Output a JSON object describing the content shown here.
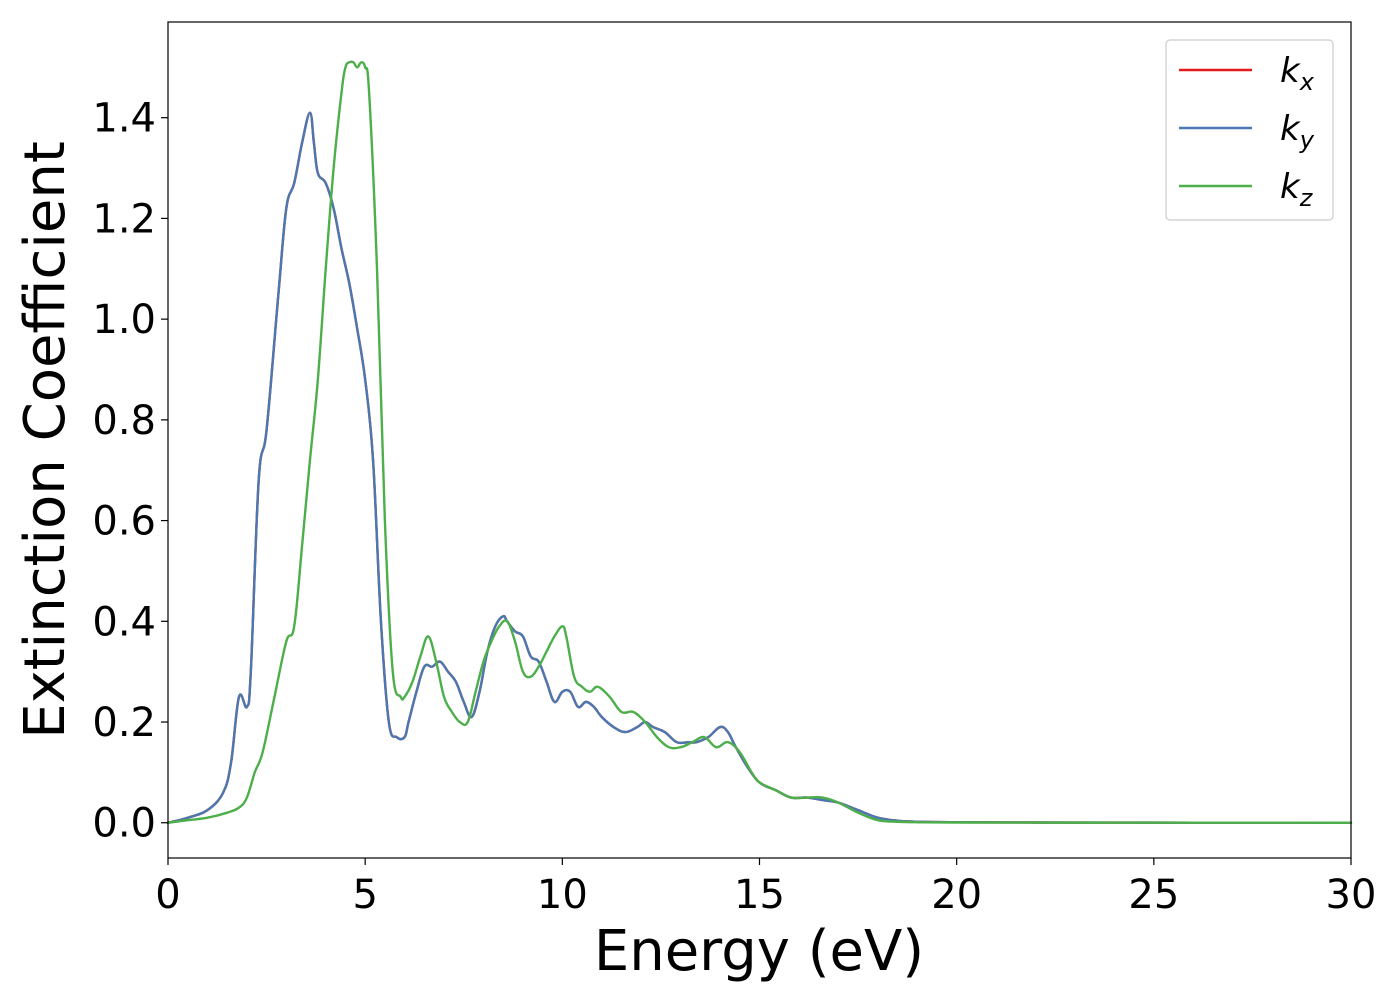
{
  "chart_data": {
    "type": "line",
    "xlabel": "Energy (eV)",
    "ylabel": "Extinction Coefficient",
    "xlim": [
      0,
      30
    ],
    "ylim": [
      -0.07,
      1.59
    ],
    "xticks": [
      "0",
      "5",
      "10",
      "15",
      "20",
      "25",
      "30"
    ],
    "yticks": [
      "0.0",
      "0.2",
      "0.4",
      "0.6",
      "0.8",
      "1.0",
      "1.2",
      "1.4"
    ],
    "grid": false,
    "legend_position": "top-right",
    "series": [
      {
        "name": "k",
        "subscript": "x",
        "color": "#e41a1c",
        "x": [
          0,
          0.5,
          1.0,
          1.4,
          1.6,
          1.8,
          2.0,
          2.1,
          2.3,
          2.5,
          2.8,
          3.0,
          3.2,
          3.4,
          3.6,
          3.7,
          3.8,
          4.0,
          4.2,
          4.4,
          4.6,
          4.8,
          5.0,
          5.2,
          5.4,
          5.6,
          5.8,
          6.0,
          6.1,
          6.3,
          6.5,
          6.7,
          6.9,
          7.1,
          7.3,
          7.5,
          7.7,
          7.9,
          8.1,
          8.3,
          8.5,
          8.6,
          8.8,
          9.0,
          9.2,
          9.4,
          9.6,
          9.8,
          10.0,
          10.2,
          10.4,
          10.6,
          10.8,
          11.0,
          11.3,
          11.6,
          11.9,
          12.1,
          12.3,
          12.6,
          12.9,
          13.2,
          13.4,
          13.7,
          14.0,
          14.2,
          14.4,
          14.7,
          15.0,
          15.4,
          15.8,
          16.2,
          16.6,
          17.0,
          17.5,
          18.0,
          18.5,
          19.0,
          20,
          22,
          24,
          26,
          28,
          30
        ],
        "y": [
          0.0,
          0.01,
          0.025,
          0.06,
          0.12,
          0.25,
          0.23,
          0.3,
          0.68,
          0.78,
          1.05,
          1.22,
          1.27,
          1.35,
          1.41,
          1.35,
          1.29,
          1.27,
          1.22,
          1.14,
          1.07,
          0.98,
          0.88,
          0.72,
          0.4,
          0.2,
          0.17,
          0.17,
          0.2,
          0.26,
          0.31,
          0.31,
          0.32,
          0.3,
          0.28,
          0.24,
          0.21,
          0.26,
          0.34,
          0.39,
          0.41,
          0.4,
          0.38,
          0.37,
          0.33,
          0.32,
          0.28,
          0.24,
          0.26,
          0.26,
          0.23,
          0.24,
          0.23,
          0.21,
          0.19,
          0.18,
          0.19,
          0.2,
          0.19,
          0.18,
          0.16,
          0.16,
          0.16,
          0.17,
          0.19,
          0.18,
          0.15,
          0.11,
          0.08,
          0.065,
          0.05,
          0.05,
          0.045,
          0.04,
          0.025,
          0.01,
          0.004,
          0.002,
          0.001,
          0.0005,
          0.0003,
          0.0002,
          0.0001,
          0.0
        ],
        "line_width": 2.4,
        "z": 1
      },
      {
        "name": "k",
        "subscript": "y",
        "color": "#4a78b0",
        "x": [
          0,
          0.5,
          1.0,
          1.4,
          1.6,
          1.8,
          2.0,
          2.1,
          2.3,
          2.5,
          2.8,
          3.0,
          3.2,
          3.4,
          3.6,
          3.7,
          3.8,
          4.0,
          4.2,
          4.4,
          4.6,
          4.8,
          5.0,
          5.2,
          5.4,
          5.6,
          5.8,
          6.0,
          6.1,
          6.3,
          6.5,
          6.7,
          6.9,
          7.1,
          7.3,
          7.5,
          7.7,
          7.9,
          8.1,
          8.3,
          8.5,
          8.6,
          8.8,
          9.0,
          9.2,
          9.4,
          9.6,
          9.8,
          10.0,
          10.2,
          10.4,
          10.6,
          10.8,
          11.0,
          11.3,
          11.6,
          11.9,
          12.1,
          12.3,
          12.6,
          12.9,
          13.2,
          13.4,
          13.7,
          14.0,
          14.2,
          14.4,
          14.7,
          15.0,
          15.4,
          15.8,
          16.2,
          16.6,
          17.0,
          17.5,
          18.0,
          18.5,
          19.0,
          20,
          22,
          24,
          26,
          28,
          30
        ],
        "y": [
          0.0,
          0.01,
          0.025,
          0.06,
          0.12,
          0.25,
          0.23,
          0.3,
          0.68,
          0.78,
          1.05,
          1.22,
          1.27,
          1.35,
          1.41,
          1.35,
          1.29,
          1.27,
          1.22,
          1.14,
          1.07,
          0.98,
          0.88,
          0.72,
          0.4,
          0.2,
          0.17,
          0.17,
          0.2,
          0.26,
          0.31,
          0.31,
          0.32,
          0.3,
          0.28,
          0.24,
          0.21,
          0.26,
          0.34,
          0.39,
          0.41,
          0.4,
          0.38,
          0.37,
          0.33,
          0.32,
          0.28,
          0.24,
          0.26,
          0.26,
          0.23,
          0.24,
          0.23,
          0.21,
          0.19,
          0.18,
          0.19,
          0.2,
          0.19,
          0.18,
          0.16,
          0.16,
          0.16,
          0.17,
          0.19,
          0.18,
          0.15,
          0.11,
          0.08,
          0.065,
          0.05,
          0.05,
          0.045,
          0.04,
          0.025,
          0.01,
          0.004,
          0.002,
          0.001,
          0.0005,
          0.0003,
          0.0002,
          0.0001,
          0.0
        ],
        "line_width": 2.4,
        "z": 2
      },
      {
        "name": "k",
        "subscript": "z",
        "color": "#4daf4a",
        "x": [
          0,
          0.5,
          1.0,
          1.5,
          1.8,
          2.0,
          2.2,
          2.4,
          2.7,
          3.0,
          3.2,
          3.4,
          3.6,
          3.8,
          4.0,
          4.2,
          4.4,
          4.5,
          4.6,
          4.7,
          4.8,
          4.9,
          5.0,
          5.1,
          5.3,
          5.5,
          5.7,
          5.9,
          6.0,
          6.2,
          6.4,
          6.6,
          6.8,
          7.0,
          7.2,
          7.4,
          7.6,
          7.8,
          8.0,
          8.2,
          8.4,
          8.6,
          8.8,
          9.0,
          9.2,
          9.4,
          9.6,
          9.8,
          10.0,
          10.1,
          10.3,
          10.5,
          10.7,
          10.9,
          11.2,
          11.5,
          11.8,
          12.1,
          12.4,
          12.7,
          13.0,
          13.3,
          13.6,
          13.9,
          14.2,
          14.5,
          14.8,
          15.0,
          15.4,
          15.8,
          16.2,
          16.6,
          17.0,
          17.5,
          18.0,
          18.5,
          19.0,
          20,
          22,
          24,
          26,
          28,
          30
        ],
        "y": [
          0.0,
          0.005,
          0.01,
          0.02,
          0.03,
          0.05,
          0.1,
          0.14,
          0.25,
          0.36,
          0.39,
          0.55,
          0.72,
          0.88,
          1.1,
          1.3,
          1.45,
          1.5,
          1.51,
          1.51,
          1.5,
          1.51,
          1.5,
          1.45,
          1.1,
          0.6,
          0.3,
          0.25,
          0.25,
          0.28,
          0.33,
          0.37,
          0.32,
          0.25,
          0.22,
          0.2,
          0.2,
          0.26,
          0.32,
          0.36,
          0.39,
          0.4,
          0.36,
          0.3,
          0.29,
          0.31,
          0.34,
          0.37,
          0.39,
          0.37,
          0.29,
          0.27,
          0.26,
          0.27,
          0.25,
          0.22,
          0.22,
          0.2,
          0.17,
          0.15,
          0.15,
          0.16,
          0.17,
          0.15,
          0.16,
          0.14,
          0.1,
          0.08,
          0.065,
          0.05,
          0.05,
          0.05,
          0.04,
          0.02,
          0.005,
          0.002,
          0.001,
          0.0005,
          0.0003,
          0.0002,
          0.0001,
          5e-05,
          0.0
        ],
        "line_width": 2.4,
        "z": 3
      }
    ]
  }
}
